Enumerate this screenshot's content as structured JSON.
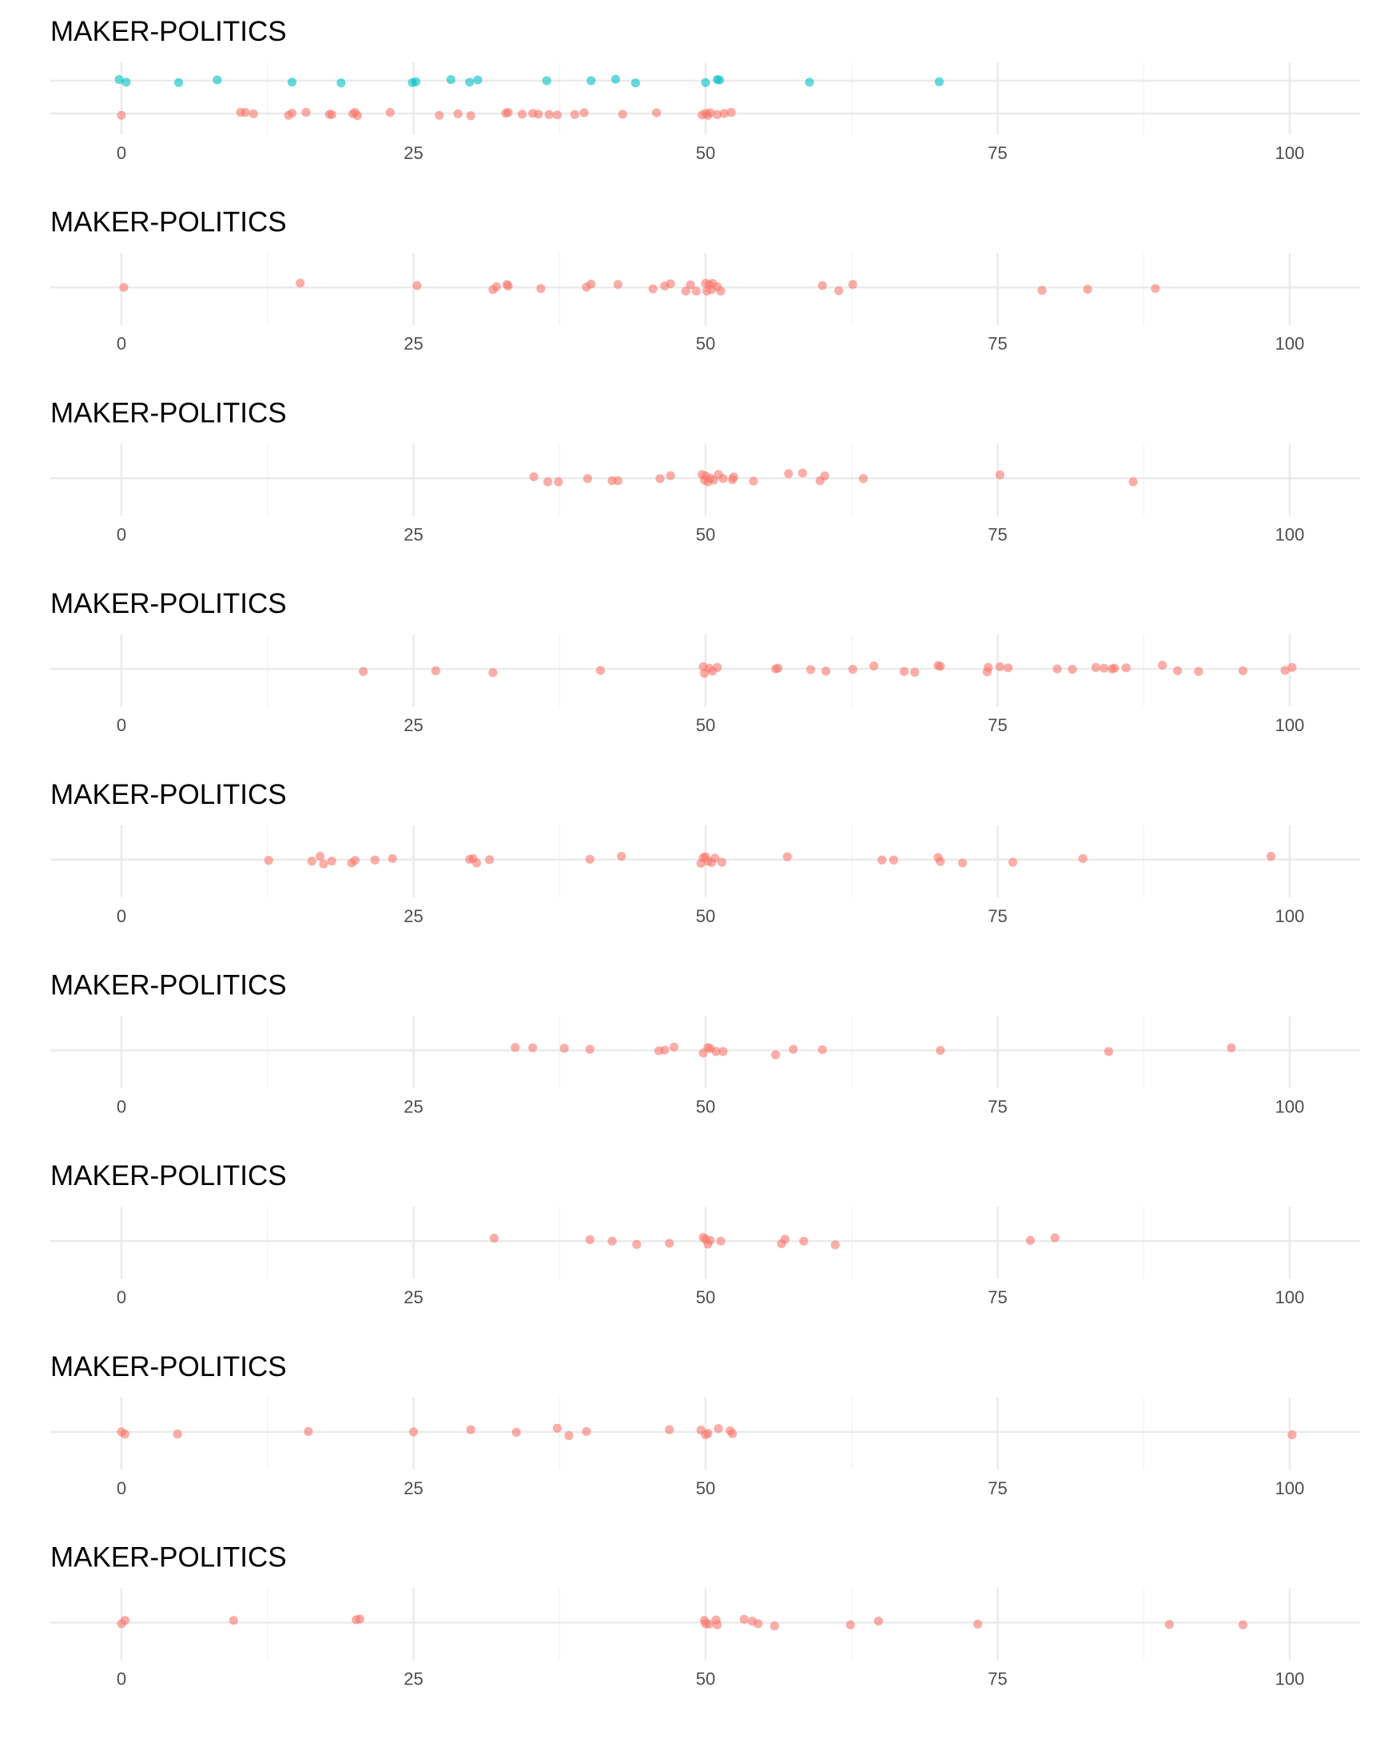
{
  "colors": {
    "background": "#ffffff",
    "grid_major": "#ebebeb",
    "grid_minor": "#f3f3f3",
    "series_red": "#F8766D",
    "series_teal": "#00BFC4",
    "tick_text": "#4d4d4d",
    "title_text": "#000000"
  },
  "chart_data": [
    {
      "type": "scatter",
      "title": "MAKER-POLITICS",
      "xlim": [
        0,
        100
      ],
      "x_ticks": [
        "0",
        "25",
        "50",
        "75",
        "100"
      ],
      "grid": true,
      "series": [
        {
          "color": "#00BFC4",
          "row": 1,
          "x": [
            -0.2,
            0.4,
            4.9,
            8.2,
            14.6,
            18.8,
            24.9,
            25.2,
            28.2,
            29.8,
            30.5,
            36.4,
            40.2,
            42.3,
            44.0,
            50.0,
            51.0,
            51.2,
            58.9,
            70.0
          ],
          "jitter": [
            0.03,
            -0.04,
            -0.05,
            0.02,
            -0.04,
            -0.06,
            -0.05,
            -0.03,
            0.03,
            -0.04,
            0.02,
            0.0,
            0.0,
            0.04,
            -0.06,
            -0.05,
            0.03,
            0.02,
            -0.04,
            -0.03
          ]
        },
        {
          "color": "#F8766D",
          "row": 0,
          "x": [
            0.0,
            10.2,
            10.6,
            11.3,
            14.3,
            14.6,
            15.8,
            17.8,
            18.0,
            19.8,
            20.0,
            20.2,
            23.0,
            27.2,
            28.8,
            29.9,
            32.9,
            33.1,
            34.3,
            35.2,
            35.7,
            36.6,
            37.3,
            38.8,
            39.6,
            42.9,
            45.8,
            49.7,
            50.0,
            50.2,
            50.4,
            51.0,
            51.6,
            52.2
          ],
          "jitter": [
            -0.05,
            0.03,
            0.03,
            -0.01,
            -0.05,
            0.01,
            0.03,
            -0.02,
            -0.03,
            -0.01,
            0.03,
            -0.06,
            0.03,
            -0.05,
            -0.01,
            -0.06,
            0.01,
            0.03,
            -0.02,
            0.0,
            -0.02,
            -0.03,
            -0.04,
            -0.03,
            0.02,
            -0.02,
            0.02,
            -0.04,
            0.0,
            -0.05,
            0.02,
            -0.03,
            0.0,
            0.03
          ]
        }
      ]
    },
    {
      "type": "scatter",
      "title": "MAKER-POLITICS",
      "xlim": [
        0,
        100
      ],
      "x_ticks": [
        "0",
        "25",
        "50",
        "75",
        "100"
      ],
      "grid": true,
      "series": [
        {
          "color": "#F8766D",
          "row": 0,
          "x": [
            0.2,
            15.3,
            25.3,
            31.8,
            32.1,
            33.0,
            33.1,
            35.9,
            39.8,
            40.2,
            42.5,
            45.5,
            46.5,
            47.0,
            48.3,
            48.7,
            49.2,
            50.0,
            50.1,
            50.3,
            50.5,
            50.6,
            51.0,
            51.3,
            60.0,
            61.4,
            62.6,
            78.8,
            82.7,
            88.5
          ],
          "jitter": [
            0.0,
            0.12,
            0.05,
            -0.06,
            0.02,
            0.08,
            0.04,
            -0.03,
            0.01,
            0.09,
            0.08,
            -0.04,
            0.04,
            0.1,
            -0.1,
            0.07,
            -0.1,
            0.11,
            -0.1,
            0.08,
            -0.06,
            0.11,
            0.02,
            -0.1,
            0.05,
            -0.09,
            0.08,
            -0.08,
            -0.05,
            -0.03
          ]
        }
      ]
    },
    {
      "type": "scatter",
      "title": "MAKER-POLITICS",
      "xlim": [
        0,
        100
      ],
      "x_ticks": [
        "0",
        "25",
        "50",
        "75",
        "100"
      ],
      "grid": true,
      "series": [
        {
          "color": "#F8766D",
          "row": 0,
          "x": [
            35.3,
            36.5,
            37.4,
            39.9,
            42.0,
            42.5,
            46.1,
            47.0,
            49.7,
            49.9,
            50.0,
            50.2,
            50.4,
            50.7,
            51.1,
            51.5,
            52.3,
            52.4,
            54.1,
            57.1,
            58.3,
            59.8,
            60.2,
            63.5,
            75.2,
            86.6
          ],
          "jitter": [
            0.04,
            -0.1,
            -0.1,
            -0.01,
            -0.07,
            -0.07,
            -0.01,
            0.07,
            0.1,
            -0.05,
            0.06,
            -0.1,
            0.0,
            -0.05,
            0.1,
            -0.01,
            -0.04,
            0.03,
            -0.08,
            0.12,
            0.14,
            -0.07,
            0.06,
            -0.01,
            0.09,
            -0.1
          ]
        }
      ]
    },
    {
      "type": "scatter",
      "title": "MAKER-POLITICS",
      "xlim": [
        0,
        100
      ],
      "x_ticks": [
        "0",
        "25",
        "50",
        "75",
        "100"
      ],
      "grid": true,
      "series": [
        {
          "color": "#F8766D",
          "row": 0,
          "x": [
            20.7,
            26.9,
            31.8,
            41.0,
            49.8,
            49.9,
            50.3,
            50.6,
            51.0,
            59.0,
            56.0,
            56.2,
            60.3,
            62.6,
            64.4,
            67.0,
            67.9,
            69.9,
            70.1,
            74.1,
            74.2,
            75.2,
            75.9,
            80.1,
            81.4,
            83.4,
            84.1,
            84.8,
            85.0,
            86.0,
            89.1,
            90.4,
            92.2,
            96.0,
            99.6,
            100.2
          ],
          "jitter": [
            -0.07,
            -0.05,
            -0.1,
            -0.04,
            0.06,
            -0.12,
            0.02,
            -0.06,
            0.04,
            -0.02,
            0.0,
            0.02,
            -0.06,
            -0.01,
            0.08,
            -0.07,
            -0.09,
            0.09,
            0.07,
            -0.08,
            0.04,
            0.06,
            0.03,
            0.0,
            -0.01,
            0.04,
            0.02,
            0.0,
            0.02,
            0.03,
            0.1,
            -0.05,
            -0.07,
            -0.05,
            -0.04,
            0.04
          ]
        }
      ]
    },
    {
      "type": "scatter",
      "title": "MAKER-POLITICS",
      "xlim": [
        0,
        100
      ],
      "x_ticks": [
        "0",
        "25",
        "50",
        "75",
        "100"
      ],
      "grid": true,
      "series": [
        {
          "color": "#F8766D",
          "row": 0,
          "x": [
            12.6,
            16.3,
            17.0,
            17.3,
            18.0,
            19.7,
            20.0,
            21.7,
            23.2,
            29.8,
            30.1,
            30.4,
            31.5,
            40.1,
            42.8,
            49.6,
            49.8,
            50.0,
            50.2,
            50.5,
            50.8,
            51.4,
            57.0,
            65.1,
            66.1,
            69.9,
            70.1,
            72.0,
            76.3,
            82.3,
            98.4
          ],
          "jitter": [
            -0.02,
            -0.04,
            0.09,
            -0.12,
            -0.04,
            -0.09,
            -0.02,
            -0.01,
            0.03,
            0.01,
            0.03,
            -0.09,
            0.0,
            0.01,
            0.09,
            -0.1,
            0.05,
            0.08,
            -0.04,
            -0.08,
            0.04,
            -0.07,
            0.08,
            -0.01,
            -0.01,
            0.06,
            -0.05,
            -0.09,
            -0.07,
            0.03,
            0.09
          ]
        }
      ]
    },
    {
      "type": "scatter",
      "title": "MAKER-POLITICS",
      "xlim": [
        0,
        100
      ],
      "x_ticks": [
        "0",
        "25",
        "50",
        "75",
        "100"
      ],
      "grid": true,
      "series": [
        {
          "color": "#F8766D",
          "row": 0,
          "x": [
            33.7,
            35.2,
            37.9,
            40.1,
            46.0,
            46.5,
            47.3,
            49.8,
            50.2,
            50.4,
            50.9,
            51.5,
            56.0,
            57.5,
            60.0,
            70.1,
            84.5,
            95.0
          ],
          "jitter": [
            0.08,
            0.07,
            0.06,
            0.03,
            -0.01,
            0.01,
            0.09,
            -0.07,
            0.08,
            0.05,
            -0.03,
            -0.03,
            -0.12,
            0.03,
            0.02,
            0.0,
            -0.03,
            0.07
          ]
        }
      ]
    },
    {
      "type": "scatter",
      "title": "MAKER-POLITICS",
      "xlim": [
        0,
        100
      ],
      "x_ticks": [
        "0",
        "25",
        "50",
        "75",
        "100"
      ],
      "grid": true,
      "series": [
        {
          "color": "#F8766D",
          "row": 0,
          "x": [
            31.9,
            40.1,
            42.0,
            44.1,
            46.9,
            49.8,
            50.0,
            50.2,
            50.4,
            51.3,
            56.5,
            56.8,
            58.4,
            61.1,
            77.8,
            79.9
          ],
          "jitter": [
            0.08,
            0.04,
            0.0,
            -0.09,
            -0.06,
            0.1,
            0.05,
            -0.08,
            0.02,
            0.0,
            -0.07,
            0.05,
            0.0,
            -0.1,
            0.02,
            0.09
          ]
        }
      ]
    },
    {
      "type": "scatter",
      "title": "MAKER-POLITICS",
      "xlim": [
        0,
        100
      ],
      "x_ticks": [
        "0",
        "25",
        "50",
        "75",
        "100"
      ],
      "grid": true,
      "series": [
        {
          "color": "#F8766D",
          "row": 0,
          "x": [
            0.0,
            0.3,
            4.8,
            16.0,
            25.0,
            29.9,
            33.8,
            37.3,
            38.3,
            39.8,
            46.9,
            49.6,
            50.0,
            50.2,
            51.1,
            52.1,
            52.3,
            100.2
          ],
          "jitter": [
            0.0,
            -0.06,
            -0.06,
            0.01,
            0.0,
            0.06,
            -0.01,
            0.1,
            -0.1,
            0.01,
            0.06,
            0.05,
            -0.08,
            -0.04,
            0.09,
            0.03,
            -0.05,
            -0.08
          ]
        }
      ]
    },
    {
      "type": "scatter",
      "title": "MAKER-POLITICS",
      "xlim": [
        0,
        100
      ],
      "x_ticks": [
        "0",
        "25",
        "50",
        "75",
        "100"
      ],
      "grid": true,
      "series": [
        {
          "color": "#F8766D",
          "row": 0,
          "x": [
            0.0,
            0.3,
            9.6,
            20.1,
            20.4,
            49.9,
            50.0,
            50.3,
            50.9,
            51.0,
            53.3,
            54.0,
            54.5,
            55.9,
            62.4,
            64.8,
            73.3,
            89.7,
            96.0
          ],
          "jitter": [
            -0.03,
            0.06,
            0.06,
            0.08,
            0.1,
            0.06,
            -0.03,
            -0.04,
            0.07,
            -0.06,
            0.09,
            0.04,
            -0.03,
            -0.09,
            -0.06,
            0.04,
            -0.04,
            -0.05,
            -0.06
          ]
        }
      ]
    }
  ]
}
